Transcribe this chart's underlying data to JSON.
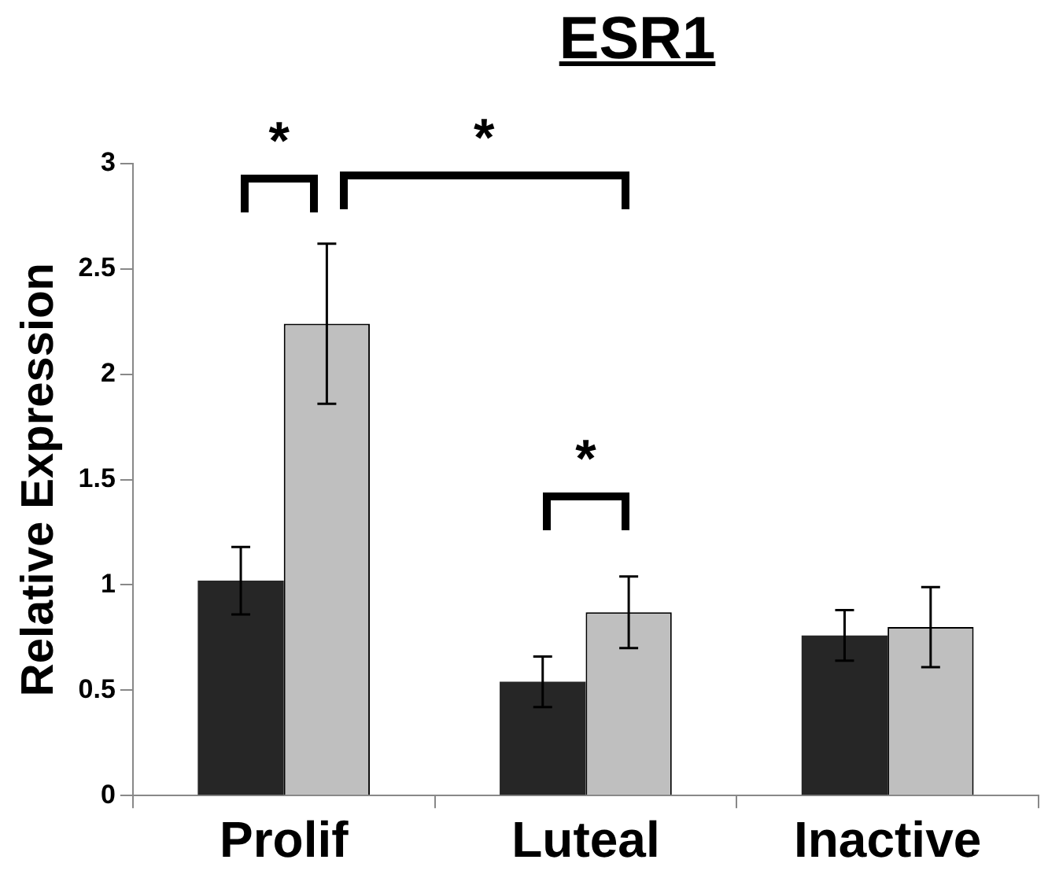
{
  "chart_data": {
    "type": "bar",
    "title": "ESR1",
    "ylabel": "Relative Expression",
    "categories": [
      "Prolif",
      "Luteal",
      "Inactive"
    ],
    "series": [
      {
        "color": "#262626",
        "values": [
          1.02,
          0.54,
          0.76
        ],
        "errors": [
          0.16,
          0.12,
          0.12
        ]
      },
      {
        "color": "#bfbfbf",
        "values": [
          2.24,
          0.87,
          0.8
        ],
        "errors": [
          0.38,
          0.17,
          0.19
        ]
      }
    ],
    "ylim": [
      0,
      3
    ],
    "yticks": [
      0,
      0.5,
      1,
      1.5,
      2,
      2.5,
      3
    ],
    "grid": false,
    "legend": false,
    "annotations": [
      "*",
      "*",
      "*"
    ]
  }
}
